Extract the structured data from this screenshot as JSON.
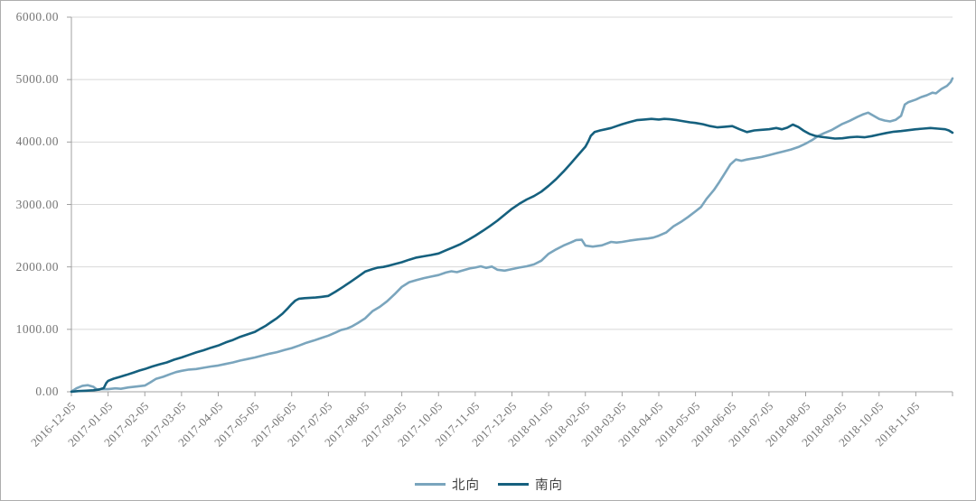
{
  "chart": {
    "y_axis": {
      "labels": [
        "6000.00",
        "5000.00",
        "4000.00",
        "3000.00",
        "2000.00",
        "1000.00",
        "0.00"
      ]
    },
    "x_axis": {
      "labels": [
        "2016-12-05",
        "2017-01-05",
        "2017-02-05",
        "2017-03-05",
        "2017-04-05",
        "2017-05-05",
        "2017-06-05",
        "2017-07-05",
        "2017-08-05",
        "2017-09-05",
        "2017-10-05",
        "2017-11-05",
        "2017-12-05",
        "2018-01-05",
        "2018-02-05",
        "2018-03-05",
        "2018-04-05",
        "2018-05-05",
        "2018-06-05",
        "2018-07-05",
        "2018-08-05",
        "2018-09-05",
        "2018-10-05",
        "2018-11-05"
      ]
    },
    "colors": {
      "north_line": "#7aa5bd",
      "south_line": "#15607e",
      "gridline": "#d8d8d8",
      "axis": "#a0a0a0",
      "tick_text": "#757575",
      "legend_text": "#3f3f3f"
    }
  },
  "chart_data": {
    "type": "line",
    "title": "",
    "xlabel": "",
    "ylabel": "",
    "x_unit": "months since 2016-12-05 (tick labels monthly, day 05)",
    "ylim": [
      0,
      6000
    ],
    "y_step": 1000,
    "grid": "horizontal",
    "legend_position": "bottom-center",
    "series": [
      {
        "name": "北向",
        "color": "#7aa5bd",
        "points": [
          [
            0,
            5
          ],
          [
            0.15,
            60
          ],
          [
            0.3,
            95
          ],
          [
            0.45,
            105
          ],
          [
            0.6,
            80
          ],
          [
            0.7,
            35
          ],
          [
            0.85,
            45
          ],
          [
            1,
            42
          ],
          [
            1.2,
            55
          ],
          [
            1.35,
            48
          ],
          [
            1.55,
            70
          ],
          [
            1.8,
            85
          ],
          [
            2,
            100
          ],
          [
            2.15,
            150
          ],
          [
            2.3,
            205
          ],
          [
            2.5,
            240
          ],
          [
            2.7,
            285
          ],
          [
            2.85,
            315
          ],
          [
            3,
            335
          ],
          [
            3.2,
            355
          ],
          [
            3.4,
            365
          ],
          [
            3.6,
            385
          ],
          [
            3.8,
            405
          ],
          [
            4,
            420
          ],
          [
            4.2,
            445
          ],
          [
            4.4,
            470
          ],
          [
            4.6,
            500
          ],
          [
            4.8,
            525
          ],
          [
            5,
            550
          ],
          [
            5.2,
            580
          ],
          [
            5.4,
            610
          ],
          [
            5.6,
            635
          ],
          [
            5.8,
            670
          ],
          [
            6,
            700
          ],
          [
            6.2,
            740
          ],
          [
            6.4,
            785
          ],
          [
            6.6,
            820
          ],
          [
            6.8,
            860
          ],
          [
            7,
            900
          ],
          [
            7.2,
            950
          ],
          [
            7.35,
            990
          ],
          [
            7.5,
            1010
          ],
          [
            7.65,
            1050
          ],
          [
            7.8,
            1100
          ],
          [
            8,
            1175
          ],
          [
            8.2,
            1290
          ],
          [
            8.4,
            1360
          ],
          [
            8.6,
            1450
          ],
          [
            8.8,
            1560
          ],
          [
            9,
            1680
          ],
          [
            9.2,
            1755
          ],
          [
            9.4,
            1790
          ],
          [
            9.6,
            1820
          ],
          [
            9.8,
            1845
          ],
          [
            10,
            1870
          ],
          [
            10.2,
            1910
          ],
          [
            10.35,
            1930
          ],
          [
            10.5,
            1915
          ],
          [
            10.7,
            1950
          ],
          [
            10.85,
            1975
          ],
          [
            11,
            1990
          ],
          [
            11.15,
            2010
          ],
          [
            11.3,
            1985
          ],
          [
            11.45,
            2005
          ],
          [
            11.6,
            1955
          ],
          [
            11.8,
            1940
          ],
          [
            12,
            1965
          ],
          [
            12.2,
            1990
          ],
          [
            12.4,
            2010
          ],
          [
            12.6,
            2040
          ],
          [
            12.8,
            2100
          ],
          [
            13,
            2210
          ],
          [
            13.2,
            2280
          ],
          [
            13.4,
            2340
          ],
          [
            13.6,
            2390
          ],
          [
            13.75,
            2430
          ],
          [
            13.9,
            2435
          ],
          [
            14,
            2340
          ],
          [
            14.2,
            2325
          ],
          [
            14.45,
            2345
          ],
          [
            14.7,
            2400
          ],
          [
            14.85,
            2390
          ],
          [
            15,
            2400
          ],
          [
            15.2,
            2420
          ],
          [
            15.45,
            2440
          ],
          [
            15.7,
            2455
          ],
          [
            15.85,
            2470
          ],
          [
            16,
            2500
          ],
          [
            16.2,
            2550
          ],
          [
            16.4,
            2650
          ],
          [
            16.6,
            2720
          ],
          [
            16.8,
            2800
          ],
          [
            17,
            2890
          ],
          [
            17.15,
            2960
          ],
          [
            17.3,
            3090
          ],
          [
            17.5,
            3230
          ],
          [
            17.65,
            3360
          ],
          [
            17.8,
            3500
          ],
          [
            17.95,
            3640
          ],
          [
            18.1,
            3720
          ],
          [
            18.25,
            3700
          ],
          [
            18.4,
            3720
          ],
          [
            18.6,
            3740
          ],
          [
            18.8,
            3760
          ],
          [
            19,
            3790
          ],
          [
            19.2,
            3820
          ],
          [
            19.4,
            3850
          ],
          [
            19.6,
            3880
          ],
          [
            19.8,
            3920
          ],
          [
            20,
            3975
          ],
          [
            20.2,
            4040
          ],
          [
            20.35,
            4100
          ],
          [
            20.5,
            4140
          ],
          [
            20.7,
            4190
          ],
          [
            20.85,
            4240
          ],
          [
            21,
            4290
          ],
          [
            21.2,
            4340
          ],
          [
            21.4,
            4400
          ],
          [
            21.55,
            4440
          ],
          [
            21.7,
            4470
          ],
          [
            21.85,
            4420
          ],
          [
            22,
            4370
          ],
          [
            22.15,
            4345
          ],
          [
            22.3,
            4330
          ],
          [
            22.45,
            4355
          ],
          [
            22.6,
            4420
          ],
          [
            22.7,
            4600
          ],
          [
            22.8,
            4640
          ],
          [
            23,
            4680
          ],
          [
            23.15,
            4720
          ],
          [
            23.3,
            4750
          ],
          [
            23.45,
            4790
          ],
          [
            23.55,
            4780
          ],
          [
            23.7,
            4850
          ],
          [
            23.85,
            4900
          ],
          [
            23.95,
            4960
          ],
          [
            24,
            5020
          ]
        ]
      },
      {
        "name": "南向",
        "color": "#15607e",
        "points": [
          [
            0,
            2
          ],
          [
            0.2,
            12
          ],
          [
            0.4,
            18
          ],
          [
            0.6,
            25
          ],
          [
            0.75,
            35
          ],
          [
            0.88,
            60
          ],
          [
            0.95,
            140
          ],
          [
            1,
            175
          ],
          [
            1.15,
            210
          ],
          [
            1.3,
            235
          ],
          [
            1.5,
            270
          ],
          [
            1.7,
            310
          ],
          [
            1.85,
            340
          ],
          [
            2,
            365
          ],
          [
            2.2,
            405
          ],
          [
            2.4,
            440
          ],
          [
            2.6,
            470
          ],
          [
            2.8,
            515
          ],
          [
            3,
            550
          ],
          [
            3.2,
            590
          ],
          [
            3.4,
            630
          ],
          [
            3.6,
            665
          ],
          [
            3.8,
            705
          ],
          [
            4,
            740
          ],
          [
            4.2,
            790
          ],
          [
            4.4,
            830
          ],
          [
            4.6,
            880
          ],
          [
            4.8,
            920
          ],
          [
            5,
            960
          ],
          [
            5.15,
            1010
          ],
          [
            5.3,
            1060
          ],
          [
            5.45,
            1120
          ],
          [
            5.6,
            1180
          ],
          [
            5.75,
            1250
          ],
          [
            5.9,
            1340
          ],
          [
            6,
            1405
          ],
          [
            6.1,
            1460
          ],
          [
            6.2,
            1490
          ],
          [
            6.35,
            1500
          ],
          [
            6.5,
            1505
          ],
          [
            6.65,
            1510
          ],
          [
            6.8,
            1520
          ],
          [
            7,
            1535
          ],
          [
            7.2,
            1605
          ],
          [
            7.4,
            1680
          ],
          [
            7.6,
            1760
          ],
          [
            7.8,
            1840
          ],
          [
            8,
            1925
          ],
          [
            8.2,
            1965
          ],
          [
            8.35,
            1990
          ],
          [
            8.5,
            2000
          ],
          [
            8.65,
            2020
          ],
          [
            8.8,
            2045
          ],
          [
            9,
            2075
          ],
          [
            9.2,
            2115
          ],
          [
            9.4,
            2150
          ],
          [
            9.6,
            2170
          ],
          [
            9.8,
            2190
          ],
          [
            10,
            2215
          ],
          [
            10.2,
            2265
          ],
          [
            10.4,
            2315
          ],
          [
            10.6,
            2365
          ],
          [
            10.8,
            2430
          ],
          [
            11,
            2500
          ],
          [
            11.2,
            2575
          ],
          [
            11.4,
            2655
          ],
          [
            11.6,
            2740
          ],
          [
            11.8,
            2835
          ],
          [
            12,
            2930
          ],
          [
            12.2,
            3010
          ],
          [
            12.4,
            3080
          ],
          [
            12.6,
            3135
          ],
          [
            12.8,
            3205
          ],
          [
            13,
            3300
          ],
          [
            13.2,
            3405
          ],
          [
            13.4,
            3525
          ],
          [
            13.6,
            3655
          ],
          [
            13.8,
            3790
          ],
          [
            14,
            3925
          ],
          [
            14.08,
            4010
          ],
          [
            14.15,
            4100
          ],
          [
            14.25,
            4160
          ],
          [
            14.4,
            4185
          ],
          [
            14.55,
            4205
          ],
          [
            14.7,
            4225
          ],
          [
            14.85,
            4255
          ],
          [
            15,
            4285
          ],
          [
            15.2,
            4320
          ],
          [
            15.4,
            4350
          ],
          [
            15.6,
            4360
          ],
          [
            15.8,
            4370
          ],
          [
            16,
            4360
          ],
          [
            16.15,
            4370
          ],
          [
            16.3,
            4365
          ],
          [
            16.5,
            4350
          ],
          [
            16.7,
            4330
          ],
          [
            16.85,
            4315
          ],
          [
            17,
            4305
          ],
          [
            17.2,
            4285
          ],
          [
            17.4,
            4255
          ],
          [
            17.6,
            4235
          ],
          [
            17.8,
            4245
          ],
          [
            18,
            4255
          ],
          [
            18.2,
            4205
          ],
          [
            18.4,
            4160
          ],
          [
            18.6,
            4185
          ],
          [
            18.8,
            4195
          ],
          [
            19,
            4205
          ],
          [
            19.2,
            4225
          ],
          [
            19.35,
            4205
          ],
          [
            19.5,
            4230
          ],
          [
            19.65,
            4280
          ],
          [
            19.8,
            4240
          ],
          [
            19.95,
            4180
          ],
          [
            20.1,
            4130
          ],
          [
            20.25,
            4100
          ],
          [
            20.4,
            4085
          ],
          [
            20.6,
            4070
          ],
          [
            20.8,
            4055
          ],
          [
            21,
            4060
          ],
          [
            21.2,
            4075
          ],
          [
            21.4,
            4085
          ],
          [
            21.6,
            4075
          ],
          [
            21.8,
            4095
          ],
          [
            22,
            4120
          ],
          [
            22.2,
            4145
          ],
          [
            22.4,
            4165
          ],
          [
            22.6,
            4175
          ],
          [
            22.8,
            4190
          ],
          [
            23,
            4205
          ],
          [
            23.2,
            4215
          ],
          [
            23.4,
            4225
          ],
          [
            23.6,
            4215
          ],
          [
            23.8,
            4205
          ],
          [
            23.9,
            4185
          ],
          [
            24,
            4150
          ]
        ]
      }
    ]
  }
}
